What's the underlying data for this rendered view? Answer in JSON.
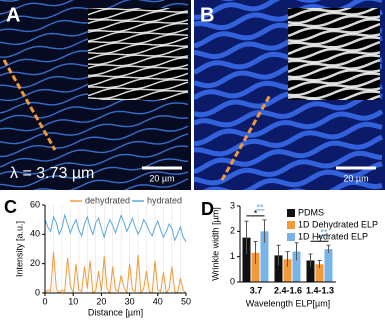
{
  "panels": {
    "a": {
      "label": "A",
      "wavelength": "λ = 3.73 µm",
      "scale": "20 µm"
    },
    "b": {
      "label": "B",
      "scale": "20 µm"
    },
    "c": {
      "label": "C"
    },
    "d": {
      "label": "D"
    }
  },
  "chart_data": [
    {
      "type": "line",
      "xlabel": "Distance [µm]",
      "ylabel": "Intensity [a.u.]",
      "x": [
        0,
        1,
        2,
        3,
        4,
        5,
        6,
        7,
        8,
        9,
        10,
        11,
        12,
        13,
        14,
        15,
        16,
        17,
        18,
        19,
        20,
        21,
        22,
        23,
        24,
        25,
        26,
        27,
        28,
        29,
        30,
        31,
        32,
        33,
        34,
        35,
        36,
        37,
        38,
        39,
        40,
        41,
        42,
        43,
        44,
        45,
        46,
        47,
        48,
        49,
        50
      ],
      "series": [
        {
          "name": "dehydrated",
          "color": "#f29a3a",
          "values": [
            0,
            2,
            1,
            28,
            3,
            0,
            2,
            1,
            24,
            5,
            0,
            20,
            2,
            1,
            18,
            3,
            22,
            0,
            2,
            15,
            1,
            25,
            3,
            0,
            18,
            2,
            1,
            12,
            4,
            0,
            20,
            2,
            1,
            26,
            0,
            3,
            15,
            1,
            0,
            22,
            2,
            1,
            14,
            0,
            3,
            18,
            1,
            0,
            10,
            2,
            0
          ]
        },
        {
          "name": "hydrated",
          "color": "#5fa8dc",
          "values": [
            50,
            45,
            42,
            52,
            48,
            40,
            44,
            53,
            47,
            41,
            46,
            50,
            43,
            39,
            47,
            52,
            45,
            40,
            48,
            51,
            44,
            38,
            45,
            50,
            46,
            41,
            47,
            53,
            48,
            42,
            46,
            51,
            45,
            40,
            44,
            50,
            47,
            42,
            39,
            45,
            49,
            43,
            38,
            42,
            47,
            44,
            36,
            40,
            45,
            38,
            35
          ]
        }
      ],
      "xlim": [
        0,
        50
      ],
      "xticks": [
        0,
        10,
        20,
        30,
        40,
        50
      ],
      "ylim": [
        0,
        60
      ],
      "yticks": [
        0,
        20,
        40,
        60
      ]
    },
    {
      "type": "bar",
      "xlabel": "Wavelength ELP[µm]",
      "ylabel": "Wrinkle width [µm]",
      "categories": [
        "3.7",
        "2.4-1.6",
        "1.4-1.3"
      ],
      "series": [
        {
          "name": "PDMS",
          "color": "#111111",
          "values": [
            1.75,
            1.05,
            0.85
          ],
          "errors": [
            0.65,
            0.4,
            0.25
          ]
        },
        {
          "name": "1D Dehydrated ELP",
          "color": "#f29a3a",
          "values": [
            1.15,
            0.9,
            0.7
          ],
          "errors": [
            0.45,
            0.3,
            0.15
          ]
        },
        {
          "name": "1D Hydrated ELP",
          "color": "#78b4e8",
          "values": [
            2.0,
            1.2,
            1.3
          ],
          "errors": [
            0.45,
            0.35,
            0.15
          ]
        }
      ],
      "annotations": [
        "*",
        "**",
        "*",
        "**"
      ],
      "ylim": [
        0,
        3
      ],
      "yticks": [
        0,
        1,
        2,
        3
      ]
    }
  ]
}
